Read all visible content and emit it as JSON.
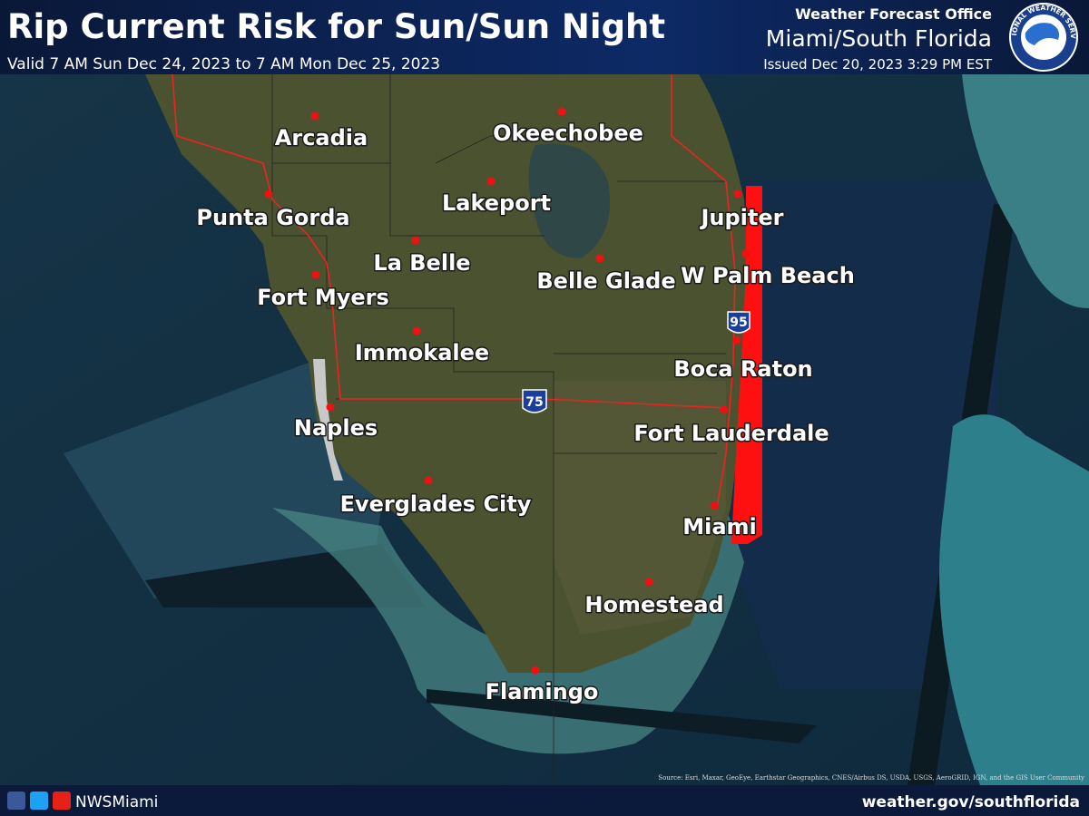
{
  "header": {
    "title": "Rip Current Risk for Sun/Sun Night",
    "valid": "Valid 7 AM Sun Dec 24, 2023 to 7 AM Mon Dec 25, 2023",
    "office": "Weather Forecast Office",
    "office_name": "Miami/South Florida",
    "issued": "Issued Dec 20, 2023 3:29 PM EST",
    "logo_text": "NATIONAL WEATHER SERVICE"
  },
  "map": {
    "cities": [
      "Arcadia",
      "Okeechobee",
      "Punta Gorda",
      "Lakeport",
      "La Belle",
      "Belle Glade",
      "Jupiter",
      "W Palm Beach",
      "Fort Myers",
      "Immokalee",
      "Boca Raton",
      "Naples",
      "Fort Lauderdale",
      "Everglades City",
      "Miami",
      "Homestead",
      "Flamingo"
    ],
    "highways": [
      "95",
      "75"
    ],
    "source": "Source: Esri, Maxar, GeoEye, Earthstar Geographics, CNES/Airbus DS, USDA, USGS, AeroGRID, IGN, and the GIS User Community"
  },
  "footer": {
    "handle": "NWSMiami",
    "url": "weather.gov/southflorida"
  }
}
